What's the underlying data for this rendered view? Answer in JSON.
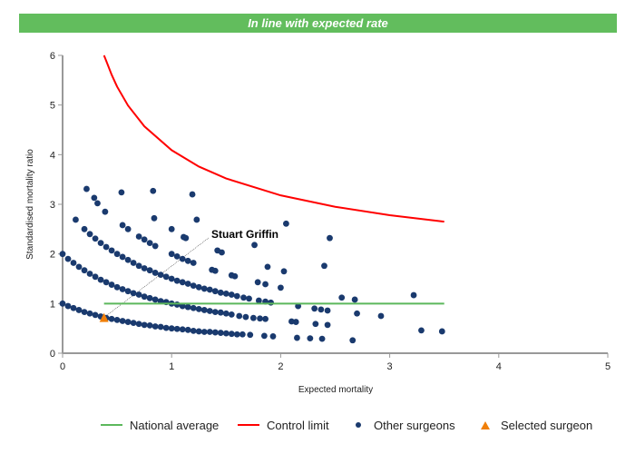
{
  "banner": {
    "text": "In line with expected rate",
    "color": "#62bd5d"
  },
  "chart_data": {
    "type": "scatter",
    "xlabel": "Expected mortality",
    "ylabel": "Standardised mortality ratio",
    "xlim": [
      0,
      5
    ],
    "ylim": [
      0,
      6
    ],
    "xticks": [
      "0",
      "1",
      "2",
      "3",
      "4",
      "5"
    ],
    "yticks": [
      "0",
      "1",
      "2",
      "3",
      "4",
      "5",
      "6"
    ],
    "grid": false,
    "legend_position": "bottom",
    "series": [
      {
        "name": "National average",
        "kind": "line",
        "color": "#5cb85c",
        "points": [
          [
            0.38,
            1
          ],
          [
            3.5,
            1
          ]
        ]
      },
      {
        "name": "Control limit",
        "kind": "line",
        "color": "#ff0000",
        "points": [
          [
            0.38,
            6.0
          ],
          [
            0.4,
            5.89
          ],
          [
            0.45,
            5.61
          ],
          [
            0.5,
            5.37
          ],
          [
            0.6,
            4.99
          ],
          [
            0.75,
            4.57
          ],
          [
            1,
            4.09
          ],
          [
            1.25,
            3.76
          ],
          [
            1.5,
            3.52
          ],
          [
            2,
            3.18
          ],
          [
            2.5,
            2.95
          ],
          [
            3,
            2.78
          ],
          [
            3.5,
            2.65
          ]
        ]
      },
      {
        "name": "Other surgeons",
        "kind": "scatter",
        "color": "#1a3a6e",
        "points": [
          [
            0,
            1.0
          ],
          [
            0.05,
            0.95
          ],
          [
            0.1,
            0.91
          ],
          [
            0.15,
            0.87
          ],
          [
            0.2,
            0.83
          ],
          [
            0.25,
            0.8
          ],
          [
            0.3,
            0.77
          ],
          [
            0.35,
            0.74
          ],
          [
            0.4,
            0.71
          ],
          [
            0.45,
            0.69
          ],
          [
            0.5,
            0.67
          ],
          [
            0.55,
            0.65
          ],
          [
            0.6,
            0.63
          ],
          [
            0.65,
            0.61
          ],
          [
            0.7,
            0.59
          ],
          [
            0.75,
            0.57
          ],
          [
            0.8,
            0.56
          ],
          [
            0.85,
            0.54
          ],
          [
            0.9,
            0.53
          ],
          [
            0.95,
            0.51
          ],
          [
            1.0,
            0.5
          ],
          [
            1.05,
            0.49
          ],
          [
            1.1,
            0.48
          ],
          [
            1.15,
            0.47
          ],
          [
            1.2,
            0.45
          ],
          [
            1.25,
            0.44
          ],
          [
            1.3,
            0.43
          ],
          [
            1.35,
            0.43
          ],
          [
            1.4,
            0.42
          ],
          [
            1.45,
            0.41
          ],
          [
            1.5,
            0.4
          ],
          [
            1.55,
            0.39
          ],
          [
            1.6,
            0.38
          ],
          [
            1.65,
            0.38
          ],
          [
            1.72,
            0.37
          ],
          [
            1.85,
            0.35
          ],
          [
            1.93,
            0.34
          ],
          [
            2.15,
            0.31
          ],
          [
            2.27,
            0.3
          ],
          [
            2.38,
            0.29
          ],
          [
            2.66,
            0.26
          ],
          [
            3.29,
            0.46
          ],
          [
            3.48,
            0.44
          ],
          [
            0,
            2.0
          ],
          [
            0.05,
            1.9
          ],
          [
            0.1,
            1.82
          ],
          [
            0.15,
            1.74
          ],
          [
            0.2,
            1.67
          ],
          [
            0.25,
            1.6
          ],
          [
            0.3,
            1.54
          ],
          [
            0.35,
            1.48
          ],
          [
            0.4,
            1.43
          ],
          [
            0.45,
            1.38
          ],
          [
            0.5,
            1.33
          ],
          [
            0.55,
            1.29
          ],
          [
            0.6,
            1.25
          ],
          [
            0.65,
            1.21
          ],
          [
            0.7,
            1.18
          ],
          [
            0.75,
            1.14
          ],
          [
            0.8,
            1.11
          ],
          [
            0.85,
            1.08
          ],
          [
            0.9,
            1.05
          ],
          [
            0.95,
            1.03
          ],
          [
            1.0,
            1.0
          ],
          [
            1.05,
            0.98
          ],
          [
            1.1,
            0.95
          ],
          [
            1.15,
            0.93
          ],
          [
            1.2,
            0.91
          ],
          [
            1.25,
            0.89
          ],
          [
            1.3,
            0.87
          ],
          [
            1.35,
            0.85
          ],
          [
            1.4,
            0.83
          ],
          [
            1.45,
            0.82
          ],
          [
            1.5,
            0.8
          ],
          [
            1.55,
            0.78
          ],
          [
            1.62,
            0.75
          ],
          [
            1.68,
            0.73
          ],
          [
            1.75,
            0.71
          ],
          [
            1.81,
            0.7
          ],
          [
            1.86,
            0.69
          ],
          [
            2.1,
            0.64
          ],
          [
            2.14,
            0.63
          ],
          [
            2.32,
            0.59
          ],
          [
            2.43,
            0.57
          ],
          [
            0.2,
            2.5
          ],
          [
            0.25,
            2.4
          ],
          [
            0.3,
            2.31
          ],
          [
            0.35,
            2.22
          ],
          [
            0.4,
            2.14
          ],
          [
            0.45,
            2.07
          ],
          [
            0.5,
            2.0
          ],
          [
            0.55,
            1.94
          ],
          [
            0.6,
            1.88
          ],
          [
            0.65,
            1.82
          ],
          [
            0.7,
            1.76
          ],
          [
            0.75,
            1.71
          ],
          [
            0.8,
            1.67
          ],
          [
            0.85,
            1.62
          ],
          [
            0.9,
            1.58
          ],
          [
            0.95,
            1.54
          ],
          [
            1.0,
            1.5
          ],
          [
            1.05,
            1.46
          ],
          [
            1.1,
            1.43
          ],
          [
            1.15,
            1.4
          ],
          [
            1.2,
            1.36
          ],
          [
            1.25,
            1.33
          ],
          [
            1.3,
            1.3
          ],
          [
            1.35,
            1.28
          ],
          [
            1.4,
            1.25
          ],
          [
            1.45,
            1.22
          ],
          [
            1.5,
            1.2
          ],
          [
            1.55,
            1.18
          ],
          [
            1.6,
            1.15
          ],
          [
            1.66,
            1.12
          ],
          [
            1.71,
            1.1
          ],
          [
            1.8,
            1.06
          ],
          [
            1.86,
            1.04
          ],
          [
            1.91,
            1.02
          ],
          [
            2.16,
            0.95
          ],
          [
            2.31,
            0.9
          ],
          [
            2.37,
            0.88
          ],
          [
            2.43,
            0.86
          ],
          [
            2.7,
            0.8
          ],
          [
            2.92,
            0.75
          ],
          [
            0.22,
            3.31
          ],
          [
            0.29,
            3.13
          ],
          [
            0.32,
            3.02
          ],
          [
            0.39,
            2.85
          ],
          [
            0.12,
            2.69
          ],
          [
            0.54,
            3.24
          ],
          [
            0.83,
            3.27
          ],
          [
            0.84,
            2.72
          ],
          [
            1.19,
            3.2
          ],
          [
            1.23,
            2.69
          ],
          [
            0.55,
            2.58
          ],
          [
            0.6,
            2.5
          ],
          [
            0.7,
            2.35
          ],
          [
            0.75,
            2.29
          ],
          [
            0.8,
            2.22
          ],
          [
            0.85,
            2.16
          ],
          [
            1.0,
            2.5
          ],
          [
            1.0,
            2.0
          ],
          [
            1.05,
            1.95
          ],
          [
            1.1,
            1.9
          ],
          [
            1.15,
            1.86
          ],
          [
            1.2,
            1.82
          ],
          [
            1.11,
            2.34
          ],
          [
            1.13,
            2.32
          ],
          [
            1.42,
            2.07
          ],
          [
            1.46,
            2.03
          ],
          [
            1.37,
            1.68
          ],
          [
            1.4,
            1.66
          ],
          [
            1.55,
            1.57
          ],
          [
            1.58,
            1.55
          ],
          [
            1.79,
            1.43
          ],
          [
            1.86,
            1.39
          ],
          [
            2.0,
            1.32
          ],
          [
            1.76,
            2.18
          ],
          [
            1.88,
            1.74
          ],
          [
            2.03,
            1.65
          ],
          [
            2.05,
            2.61
          ],
          [
            2.45,
            2.32
          ],
          [
            2.4,
            1.76
          ],
          [
            2.56,
            1.12
          ],
          [
            2.68,
            1.08
          ],
          [
            3.22,
            1.17
          ]
        ]
      },
      {
        "name": "Selected surgeon",
        "kind": "scatter",
        "marker": "triangle",
        "color": "#f07f09",
        "points": [
          [
            0.38,
            0.72
          ]
        ],
        "annotation": "Stuart Griffin"
      }
    ]
  }
}
